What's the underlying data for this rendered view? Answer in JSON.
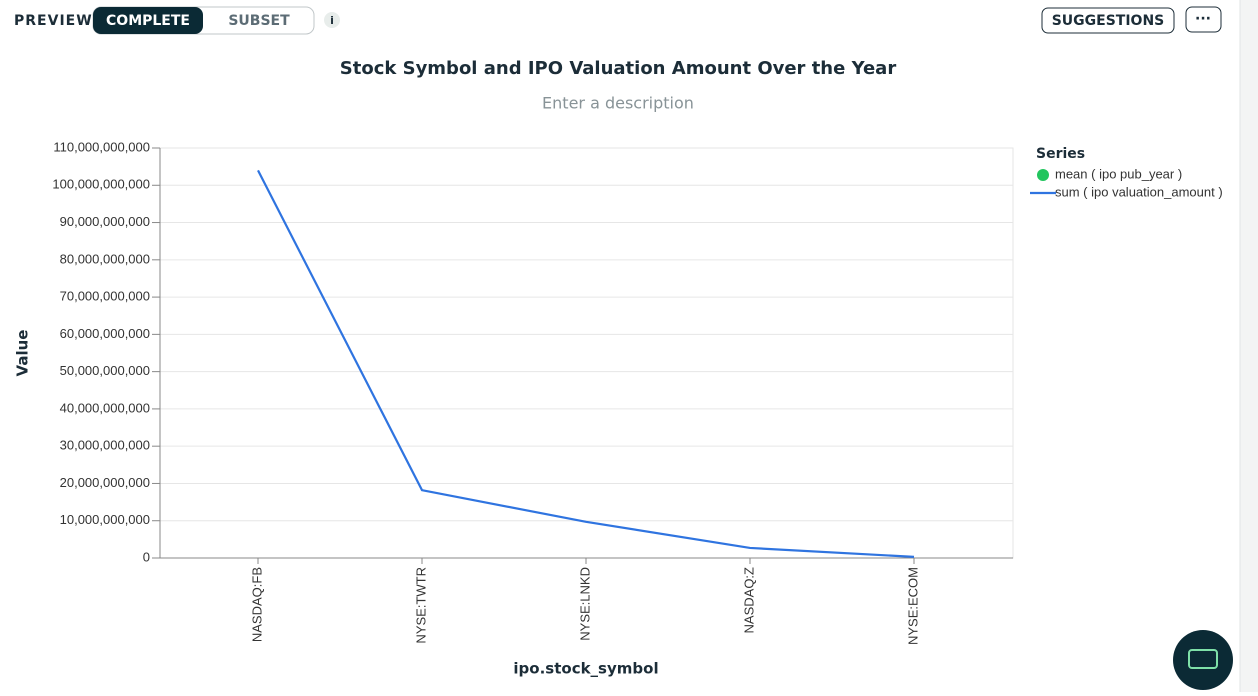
{
  "toolbar": {
    "preview": "PREVIEW",
    "modes": [
      "COMPLETE",
      "SUBSET"
    ],
    "info": "i",
    "suggestions": "SUGGESTIONS",
    "more": "···"
  },
  "chart_data": {
    "type": "line",
    "title": "Stock Symbol and IPO Valuation Amount Over the Year",
    "subtitle": "Enter a description",
    "x_label": "ipo.stock_symbol",
    "y_label": "Value",
    "legend_title": "Series",
    "legend": "right",
    "grid": true,
    "categories": [
      "NASDAQ:FB",
      "NYSE:TWTR",
      "NYSE:LNKD",
      "NASDAQ:Z",
      "NYSE:ECOM"
    ],
    "series": [
      {
        "name": "mean ( ipo pub_year )",
        "color": "#22c55e",
        "marker": "circle",
        "values": [
          null,
          null,
          null,
          null,
          null
        ]
      },
      {
        "name": "sum ( ipo valuation_amount )",
        "color": "#2f74e0",
        "marker": "line",
        "values": [
          104000000000,
          18200000000,
          9700000000,
          2700000000,
          300000000
        ]
      }
    ],
    "ylim": [
      0,
      110000000000
    ],
    "yticks": [
      0,
      {
        "value": 10000000000,
        "label": "10,000,000,000"
      },
      {
        "value": 20000000000,
        "label": "20,000,000,000"
      },
      {
        "value": 30000000000,
        "label": "30,000,000,000"
      },
      {
        "value": 40000000000,
        "label": "40,000,000,000"
      },
      {
        "value": 50000000000,
        "label": "50,000,000,000"
      },
      {
        "value": 60000000000,
        "label": "60,000,000,000"
      },
      {
        "value": 70000000000,
        "label": "70,000,000,000"
      },
      {
        "value": 80000000000,
        "label": "80,000,000,000"
      },
      {
        "value": 90000000000,
        "label": "90,000,000,000"
      },
      {
        "value": 100000000000,
        "label": "100,000,000,000"
      },
      {
        "value": 110000000000,
        "label": "110,000,000,000"
      }
    ]
  }
}
